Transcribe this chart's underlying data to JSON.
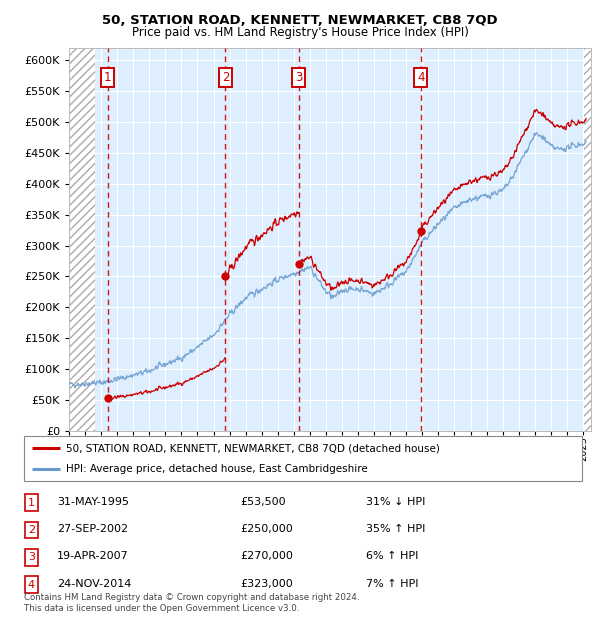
{
  "title1": "50, STATION ROAD, KENNETT, NEWMARKET, CB8 7QD",
  "title2": "Price paid vs. HM Land Registry's House Price Index (HPI)",
  "ylim": [
    0,
    620000
  ],
  "yticks": [
    0,
    50000,
    100000,
    150000,
    200000,
    250000,
    300000,
    350000,
    400000,
    450000,
    500000,
    550000,
    600000
  ],
  "ytick_labels": [
    "£0",
    "£50K",
    "£100K",
    "£150K",
    "£200K",
    "£250K",
    "£300K",
    "£350K",
    "£400K",
    "£450K",
    "£500K",
    "£550K",
    "£600K"
  ],
  "xlim_start": 1993.0,
  "xlim_end": 2025.5,
  "transaction_dates": [
    1995.414,
    2002.737,
    2007.298,
    2014.897
  ],
  "transaction_prices": [
    53500,
    250000,
    270000,
    323000
  ],
  "transaction_labels": [
    "1",
    "2",
    "3",
    "4"
  ],
  "sale_color": "#cc0000",
  "hpi_color": "#6699cc",
  "hpi_anchors_x": [
    1993.0,
    1995.0,
    1995.4,
    1997.0,
    1998.0,
    1999.0,
    2000.0,
    2001.0,
    2002.0,
    2002.7,
    2003.0,
    2004.0,
    2005.0,
    2006.0,
    2007.0,
    2007.3,
    2008.0,
    2009.0,
    2009.5,
    2010.0,
    2011.0,
    2012.0,
    2013.0,
    2014.0,
    2014.9,
    2015.0,
    2016.0,
    2017.0,
    2018.0,
    2019.0,
    2019.5,
    2020.0,
    2020.5,
    2021.0,
    2021.5,
    2022.0,
    2022.5,
    2023.0,
    2023.5,
    2024.0,
    2024.5,
    2025.0
  ],
  "hpi_anchors_y": [
    75000,
    78000,
    80000,
    90000,
    97000,
    108000,
    118000,
    135000,
    155000,
    178000,
    188000,
    215000,
    230000,
    245000,
    255000,
    258000,
    265000,
    225000,
    215000,
    228000,
    230000,
    222000,
    238000,
    258000,
    300000,
    305000,
    335000,
    360000,
    375000,
    380000,
    385000,
    388000,
    405000,
    430000,
    455000,
    480000,
    475000,
    460000,
    455000,
    458000,
    462000,
    465000
  ],
  "legend_label_sale": "50, STATION ROAD, KENNETT, NEWMARKET, CB8 7QD (detached house)",
  "legend_label_hpi": "HPI: Average price, detached house, East Cambridgeshire",
  "table_entries": [
    {
      "num": "1",
      "date": "31-MAY-1995",
      "price": "£53,500",
      "hpi": "31% ↓ HPI"
    },
    {
      "num": "2",
      "date": "27-SEP-2002",
      "price": "£250,000",
      "hpi": "35% ↑ HPI"
    },
    {
      "num": "3",
      "date": "19-APR-2007",
      "price": "£270,000",
      "hpi": "6% ↑ HPI"
    },
    {
      "num": "4",
      "date": "24-NOV-2014",
      "price": "£323,000",
      "hpi": "7% ↑ HPI"
    }
  ],
  "footer": "Contains HM Land Registry data © Crown copyright and database right 2024.\nThis data is licensed under the Open Government Licence v3.0.",
  "chart_bg": "#ddeeff",
  "hatch_left_end": 1994.6,
  "hatch_right_start": 2025.08
}
